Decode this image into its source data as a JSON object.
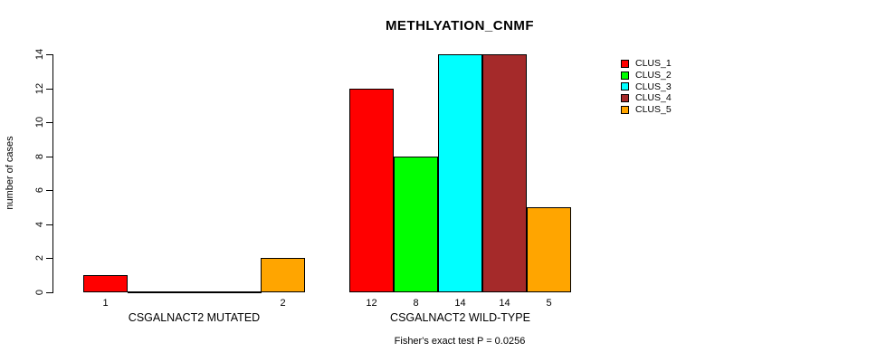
{
  "chart_data": {
    "type": "bar",
    "title": "METHLYATION_CNMF",
    "ylabel": "number of cases",
    "xlabel": "",
    "ylim": [
      0,
      14
    ],
    "yticks": [
      0,
      2,
      4,
      6,
      8,
      10,
      12,
      14
    ],
    "grid": false,
    "legend_position": "top-right",
    "categories": [
      "CSGALNACT2 MUTATED",
      "CSGALNACT2 WILD-TYPE"
    ],
    "series": [
      {
        "name": "CLUS_1",
        "color": "#ff0000",
        "values": [
          1,
          12
        ]
      },
      {
        "name": "CLUS_2",
        "color": "#00ff00",
        "values": [
          0,
          8
        ]
      },
      {
        "name": "CLUS_3",
        "color": "#00ffff",
        "values": [
          0,
          14
        ]
      },
      {
        "name": "CLUS_4",
        "color": "#a52a2a",
        "values": [
          0,
          14
        ]
      },
      {
        "name": "CLUS_5",
        "color": "#ffa500",
        "values": [
          2,
          5
        ]
      }
    ],
    "bar_labels": [
      [
        "1",
        "",
        "",
        "",
        "2"
      ],
      [
        "12",
        "8",
        "14",
        "14",
        "5"
      ]
    ],
    "annotation": "Fisher's exact test P = 0.0256",
    "axis_color": "#000000",
    "bar_border_color": "#000000"
  }
}
